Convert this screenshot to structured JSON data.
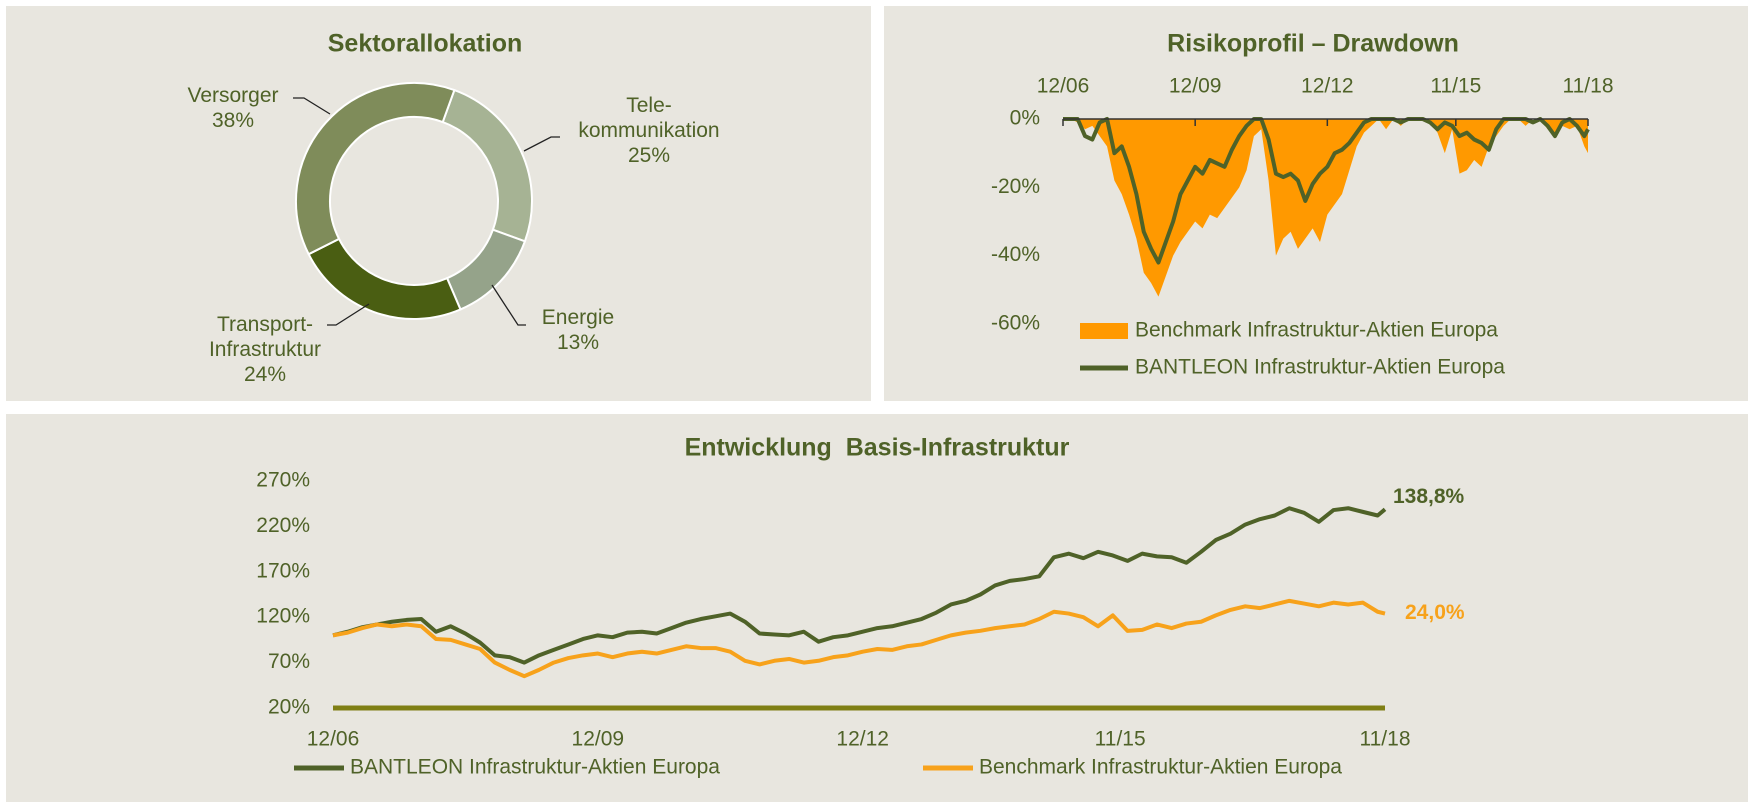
{
  "chart_data": [
    {
      "type": "donut",
      "title": "Sektorallokation",
      "categories": [
        "Tele-\nkommunikation",
        "Energie",
        "Transport-\nInfrastruktur",
        "Versorger"
      ],
      "values": [
        25,
        13,
        24,
        38
      ],
      "value_labels": [
        "25%",
        "13%",
        "24%",
        "38%"
      ],
      "colors": [
        "#a6b394",
        "#95a38a",
        "#4a5e12",
        "#7f8c5a"
      ]
    },
    {
      "type": "area",
      "title": "Risikoprofil – Drawdown",
      "x": [
        "2006-12",
        "2007-02",
        "2007-04",
        "2007-06",
        "2007-08",
        "2007-10",
        "2007-12",
        "2008-02",
        "2008-04",
        "2008-06",
        "2008-08",
        "2008-10",
        "2008-12",
        "2009-02",
        "2009-04",
        "2009-06",
        "2009-08",
        "2009-10",
        "2009-12",
        "2010-02",
        "2010-04",
        "2010-06",
        "2010-08",
        "2010-10",
        "2010-12",
        "2011-02",
        "2011-04",
        "2011-06",
        "2011-08",
        "2011-10",
        "2011-12",
        "2012-02",
        "2012-04",
        "2012-06",
        "2012-08",
        "2012-10",
        "2012-12",
        "2013-02",
        "2013-04",
        "2013-06",
        "2013-08",
        "2013-10",
        "2013-12",
        "2014-02",
        "2014-04",
        "2014-06",
        "2014-08",
        "2014-10",
        "2014-12",
        "2015-02",
        "2015-04",
        "2015-06",
        "2015-08",
        "2015-10",
        "2015-12",
        "2016-02",
        "2016-04",
        "2016-06",
        "2016-08",
        "2016-10",
        "2016-12",
        "2017-02",
        "2017-04",
        "2017-06",
        "2017-08",
        "2017-10",
        "2017-12",
        "2018-02",
        "2018-04",
        "2018-06",
        "2018-08",
        "2018-10",
        "2018-11"
      ],
      "xlim": [
        "2006-12",
        "2018-11"
      ],
      "xticks": [
        {
          "value": "2006-12",
          "label": "12/06"
        },
        {
          "value": "2009-12",
          "label": "12/09"
        },
        {
          "value": "2012-12",
          "label": "12/12"
        },
        {
          "value": "2015-11",
          "label": "11/15"
        },
        {
          "value": "2018-11",
          "label": "11/18"
        }
      ],
      "ylim": [
        -60,
        0
      ],
      "yticks": [
        {
          "value": 0,
          "label": "0%"
        },
        {
          "value": -20,
          "label": "-20%"
        },
        {
          "value": -40,
          "label": "-40%"
        },
        {
          "value": -60,
          "label": "-60%"
        }
      ],
      "series": [
        {
          "name": "Benchmark Infrastruktur-Aktien Europa",
          "color": "#ff9900",
          "style": "area",
          "values": [
            0,
            0,
            -1,
            -3,
            -2,
            -5,
            -8,
            -18,
            -22,
            -28,
            -35,
            -45,
            -48,
            -52,
            -46,
            -40,
            -36,
            -33,
            -30,
            -32,
            -28,
            -29,
            -26,
            -23,
            -20,
            -15,
            -5,
            -3,
            -18,
            -40,
            -35,
            -33,
            -38,
            -35,
            -32,
            -36,
            -28,
            -25,
            -22,
            -15,
            -8,
            -4,
            -2,
            0,
            -3,
            0,
            -2,
            0,
            0,
            0,
            -1,
            -4,
            -10,
            -3,
            -16,
            -15,
            -12,
            -14,
            -8,
            -5,
            -2,
            0,
            0,
            -2,
            0,
            0,
            -3,
            -5,
            -2,
            -3,
            -2,
            -8,
            -10
          ]
        },
        {
          "name": "BANTLEON Infrastruktur-Aktien Europa",
          "color": "#4f6228",
          "style": "line",
          "values": [
            0,
            0,
            0,
            -5,
            -6,
            -1,
            0,
            -10,
            -8,
            -14,
            -22,
            -33,
            -38,
            -42,
            -36,
            -30,
            -22,
            -18,
            -14,
            -16,
            -12,
            -13,
            -14,
            -9,
            -5,
            -2,
            0,
            0,
            -6,
            -16,
            -17,
            -16,
            -18,
            -24,
            -19,
            -16,
            -14,
            -10,
            -9,
            -7,
            -4,
            -1,
            0,
            0,
            0,
            0,
            -1,
            0,
            0,
            0,
            -1,
            -3,
            -1,
            -2,
            -5,
            -4,
            -6,
            -7,
            -9,
            -3,
            0,
            0,
            0,
            0,
            -1,
            0,
            -2,
            -5,
            -1,
            0,
            -2,
            -5,
            -3
          ]
        }
      ]
    },
    {
      "type": "line",
      "title": "Entwicklung  Basis-Infrastruktur",
      "x": [
        "2006-12",
        "2007-02",
        "2007-04",
        "2007-06",
        "2007-08",
        "2007-10",
        "2007-12",
        "2008-02",
        "2008-04",
        "2008-06",
        "2008-08",
        "2008-10",
        "2008-12",
        "2009-02",
        "2009-04",
        "2009-06",
        "2009-08",
        "2009-10",
        "2009-12",
        "2010-02",
        "2010-04",
        "2010-06",
        "2010-08",
        "2010-10",
        "2010-12",
        "2011-02",
        "2011-04",
        "2011-06",
        "2011-08",
        "2011-10",
        "2011-12",
        "2012-02",
        "2012-04",
        "2012-06",
        "2012-08",
        "2012-10",
        "2012-12",
        "2013-02",
        "2013-04",
        "2013-06",
        "2013-08",
        "2013-10",
        "2013-12",
        "2014-02",
        "2014-04",
        "2014-06",
        "2014-08",
        "2014-10",
        "2014-12",
        "2015-02",
        "2015-04",
        "2015-06",
        "2015-08",
        "2015-10",
        "2015-12",
        "2016-02",
        "2016-04",
        "2016-06",
        "2016-08",
        "2016-10",
        "2016-12",
        "2017-02",
        "2017-04",
        "2017-06",
        "2017-08",
        "2017-10",
        "2017-12",
        "2018-02",
        "2018-04",
        "2018-06",
        "2018-08",
        "2018-10",
        "2018-11"
      ],
      "xlim": [
        "2006-12",
        "2018-11"
      ],
      "xticks": [
        {
          "value": "2006-12",
          "label": "12/06"
        },
        {
          "value": "2009-12",
          "label": "12/09"
        },
        {
          "value": "2012-12",
          "label": "12/12"
        },
        {
          "value": "2015-11",
          "label": "11/15"
        },
        {
          "value": "2018-11",
          "label": "11/18"
        }
      ],
      "ylim": [
        20,
        270
      ],
      "yticks": [
        {
          "value": 20,
          "label": "20%"
        },
        {
          "value": 70,
          "label": "70%"
        },
        {
          "value": 120,
          "label": "120%"
        },
        {
          "value": 170,
          "label": "170%"
        },
        {
          "value": 220,
          "label": "220%"
        },
        {
          "value": 270,
          "label": "270%"
        }
      ],
      "series": [
        {
          "name": "BANTLEON Infrastruktur-Aktien Europa",
          "color": "#4f6228",
          "end_label": "138,8%",
          "values": [
            100,
            104,
            109,
            112,
            115,
            117,
            118,
            104,
            110,
            102,
            92,
            78,
            76,
            70,
            78,
            84,
            90,
            96,
            100,
            98,
            103,
            104,
            102,
            108,
            114,
            118,
            121,
            124,
            115,
            102,
            101,
            100,
            104,
            93,
            98,
            100,
            104,
            108,
            110,
            114,
            118,
            125,
            134,
            138,
            145,
            155,
            160,
            162,
            165,
            186,
            190,
            185,
            192,
            188,
            182,
            190,
            187,
            186,
            180,
            192,
            205,
            212,
            222,
            228,
            232,
            240,
            235,
            225,
            238,
            240,
            236,
            232,
            238.8
          ]
        },
        {
          "name": "Benchmark Infrastruktur-Aktien Europa",
          "color": "#f7a21b",
          "end_label": "24,0%",
          "values": [
            100,
            103,
            108,
            112,
            110,
            112,
            110,
            96,
            95,
            90,
            85,
            70,
            62,
            55,
            62,
            70,
            75,
            78,
            80,
            76,
            80,
            82,
            80,
            84,
            88,
            86,
            86,
            82,
            72,
            68,
            72,
            74,
            70,
            72,
            76,
            78,
            82,
            85,
            84,
            88,
            90,
            95,
            100,
            103,
            105,
            108,
            110,
            112,
            118,
            126,
            124,
            120,
            110,
            122,
            105,
            106,
            112,
            108,
            113,
            115,
            122,
            128,
            132,
            130,
            134,
            138,
            135,
            132,
            136,
            134,
            136,
            126,
            124
          ]
        }
      ]
    }
  ]
}
